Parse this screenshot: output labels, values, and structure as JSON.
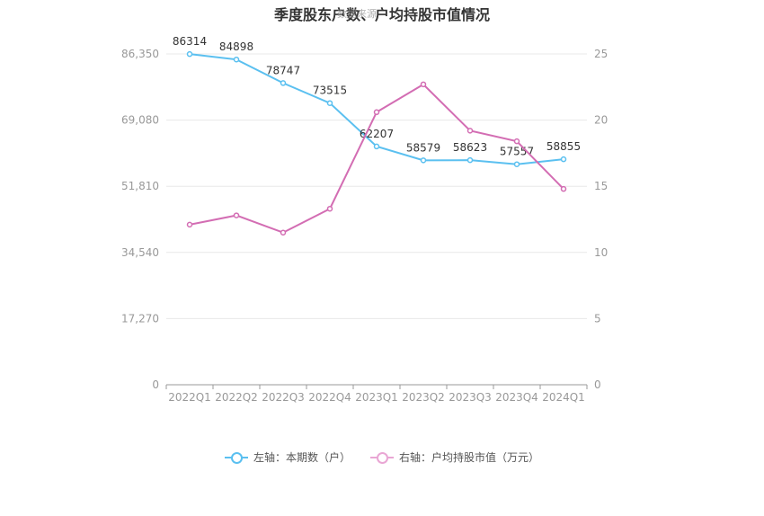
{
  "chart_data": {
    "type": "line",
    "title": "季度股东户数、户均持股市值情况",
    "watermark": "数据来源",
    "categories": [
      "2022Q1",
      "2022Q2",
      "2022Q3",
      "2022Q4",
      "2023Q1",
      "2023Q2",
      "2023Q3",
      "2023Q4",
      "2024Q1"
    ],
    "left_axis": {
      "ticks": [
        "0",
        "17,270",
        "34,540",
        "51,810",
        "69,080",
        "86,350"
      ],
      "ylim": [
        0,
        86350
      ]
    },
    "right_axis": {
      "ticks": [
        "0",
        "5",
        "10",
        "15",
        "20",
        "25"
      ],
      "ylim": [
        0,
        25
      ]
    },
    "series": [
      {
        "name": "左轴：本期数（户）",
        "axis": "left",
        "color": "#5bc0f0",
        "values": [
          86314,
          84898,
          78747,
          73515,
          62207,
          58579,
          58623,
          57557,
          58855
        ],
        "labels": [
          "86314",
          "84898",
          "78747",
          "73515",
          "62207",
          "58579",
          "58623",
          "57557",
          "58855"
        ]
      },
      {
        "name": "右轴：户均持股市值（万元）",
        "axis": "right",
        "color": "#d36db3",
        "values": [
          12.1,
          12.8,
          11.5,
          13.3,
          20.6,
          22.7,
          19.2,
          18.4,
          14.8
        ]
      }
    ],
    "grid": true,
    "legend_position": "bottom"
  }
}
